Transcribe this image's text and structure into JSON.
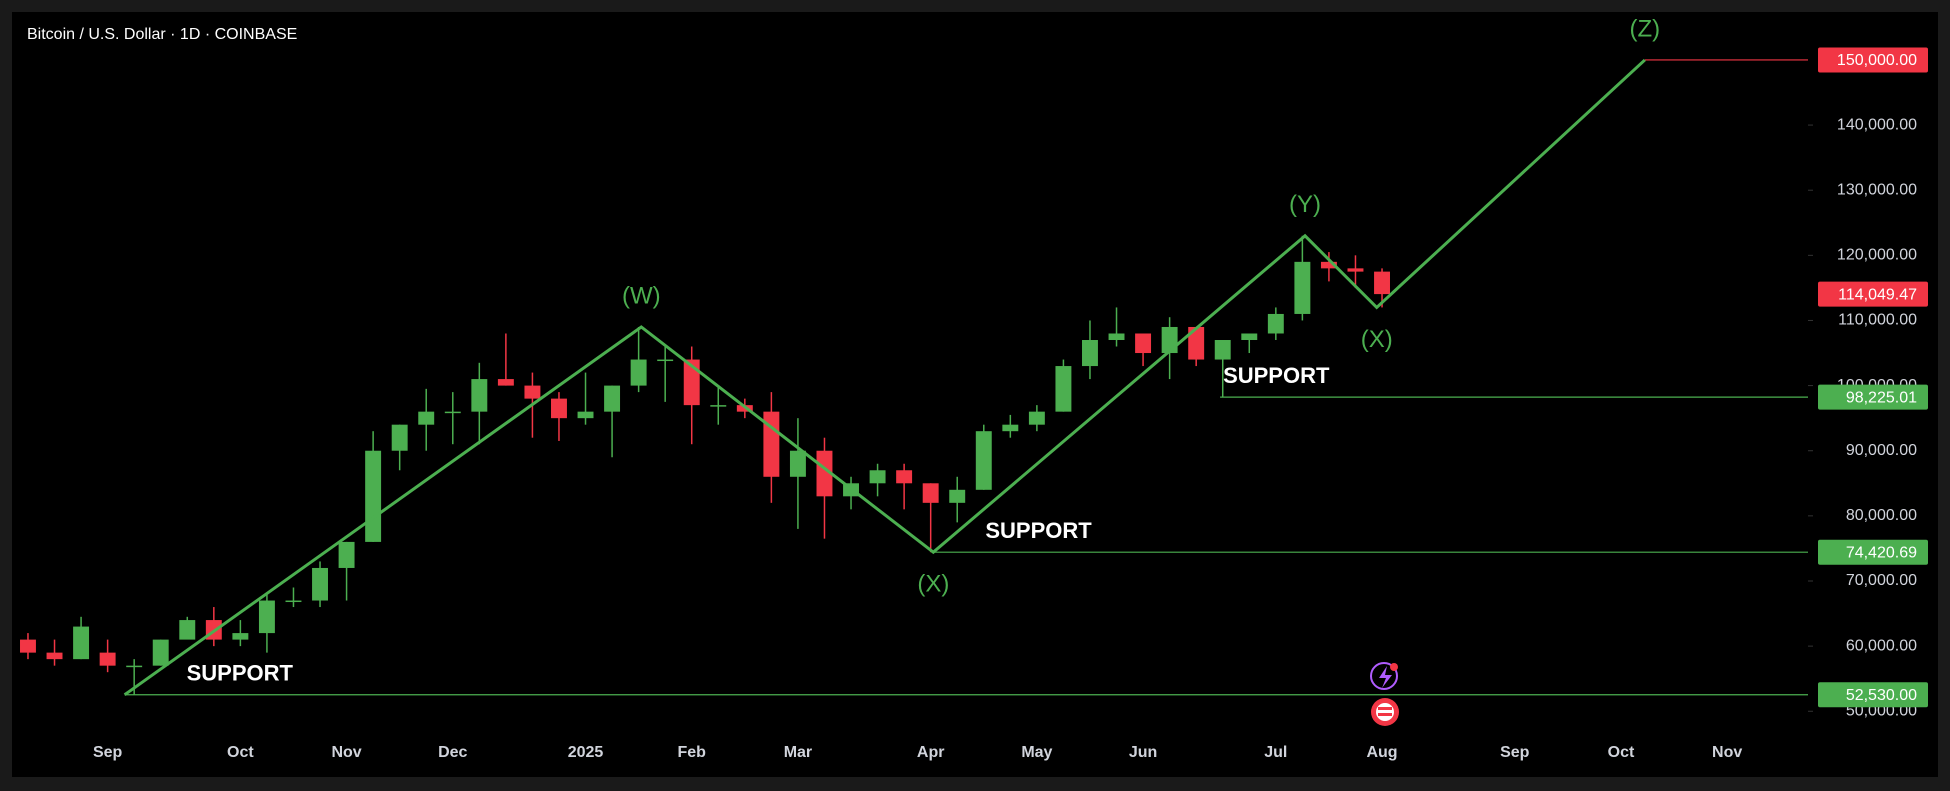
{
  "chart_data": {
    "type": "candlestick",
    "title": "Bitcoin / U.S. Dollar · 1D · COINBASE",
    "categories": [
      null,
      null,
      null,
      "Sep",
      null,
      null,
      null,
      null,
      "Oct",
      null,
      null,
      null,
      "Nov",
      null,
      null,
      null,
      "Dec",
      null,
      null,
      null,
      null,
      "2025",
      null,
      null,
      null,
      "Feb",
      null,
      null,
      null,
      "Mar",
      null,
      null,
      null,
      null,
      "Apr",
      null,
      null,
      null,
      "May",
      null,
      null,
      null,
      "Jun",
      null,
      null,
      null,
      null,
      "Jul",
      null,
      null,
      null,
      "Aug",
      null,
      null,
      null,
      null,
      "Sep",
      null,
      null,
      null,
      "Oct",
      null,
      null,
      null,
      "Nov",
      null,
      null
    ],
    "open": [
      61000,
      59000,
      58000,
      59000,
      57000,
      57000,
      61000,
      64000,
      61000,
      62000,
      67000,
      67000,
      72000,
      76000,
      90000,
      94000,
      96000,
      96000,
      101000,
      100000,
      98000,
      95000,
      96000,
      100000,
      104000,
      104000,
      97000,
      97000,
      96000,
      86000,
      90000,
      83000,
      85000,
      87000,
      85000,
      82000,
      84000,
      93000,
      94000,
      96000,
      103000,
      107000,
      108000,
      105000,
      109000,
      104000,
      107000,
      108000,
      111000,
      119000,
      118000,
      117500,
      null,
      null,
      null,
      null,
      null,
      null,
      null,
      null,
      null,
      null,
      null,
      null,
      null,
      null,
      null
    ],
    "high": [
      62000,
      61000,
      64500,
      61000,
      58000,
      61000,
      64500,
      66000,
      64000,
      68000,
      69000,
      73000,
      76000,
      93000,
      94000,
      99500,
      99000,
      103500,
      108000,
      102000,
      99000,
      102000,
      100000,
      109000,
      106000,
      106000,
      100000,
      98000,
      99000,
      95000,
      92000,
      86000,
      88000,
      88000,
      85000,
      86000,
      94000,
      95500,
      97000,
      104000,
      110000,
      112000,
      108000,
      110500,
      109000,
      106000,
      108000,
      112000,
      123000,
      120500,
      120000,
      118000,
      null,
      null,
      null,
      null,
      null,
      null,
      null,
      null,
      null,
      null,
      null,
      null,
      null,
      null,
      null
    ],
    "low": [
      58000,
      57000,
      58000,
      56000,
      52530,
      57000,
      62000,
      60000,
      60000,
      59000,
      66000,
      66000,
      67000,
      76000,
      87000,
      90000,
      91000,
      91000,
      100000,
      92000,
      91500,
      94000,
      89000,
      99000,
      97500,
      91000,
      94000,
      95000,
      82000,
      78000,
      76500,
      81000,
      83000,
      81000,
      74420.69,
      79000,
      84000,
      92000,
      93000,
      96000,
      101000,
      106000,
      103000,
      101000,
      103000,
      98225.01,
      105000,
      107000,
      110000,
      116000,
      115000,
      112000,
      null,
      null,
      null,
      null,
      null,
      null,
      null,
      null,
      null,
      null,
      null,
      null,
      null,
      null,
      null
    ],
    "close": [
      59000,
      58000,
      63000,
      57000,
      57000,
      61000,
      64000,
      61000,
      62000,
      67000,
      67000,
      72000,
      76000,
      90000,
      94000,
      96000,
      96000,
      101000,
      100000,
      98000,
      95000,
      96000,
      100000,
      104000,
      104000,
      97000,
      97000,
      96000,
      86000,
      90000,
      83000,
      85000,
      87000,
      85000,
      82000,
      84000,
      93000,
      94000,
      96000,
      103000,
      107000,
      108000,
      105000,
      109000,
      104000,
      107000,
      108000,
      111000,
      119000,
      118000,
      117500,
      114049.47,
      null,
      null,
      null,
      null,
      null,
      null,
      null,
      null,
      null,
      null,
      null,
      null,
      null,
      null,
      null
    ],
    "up_color": "#4caf50",
    "down_color": "#f23645",
    "ylim": [
      46200,
      157300
    ],
    "yticks": [
      {
        "value": 50000,
        "label": "50,000.00"
      },
      {
        "value": 60000,
        "label": "60,000.00"
      },
      {
        "value": 70000,
        "label": "70,000.00"
      },
      {
        "value": 80000,
        "label": "80,000.00"
      },
      {
        "value": 90000,
        "label": "90,000.00"
      },
      {
        "value": 100000,
        "label": "100,000.00"
      },
      {
        "value": 110000,
        "label": "110,000.00"
      },
      {
        "value": 120000,
        "label": "120,000.00"
      },
      {
        "value": 130000,
        "label": "130,000.00"
      },
      {
        "value": 140000,
        "label": "140,000.00"
      }
    ],
    "wave": {
      "color": "#4caf50",
      "x": [
        4.14,
        23.6,
        34.6,
        48.6,
        51.3,
        61.4
      ],
      "y": [
        52530,
        109000,
        74420.69,
        123000,
        112000,
        150000
      ],
      "labels": [
        null,
        "(W)",
        "(X)",
        "(Y)",
        "(X)",
        "(Z)"
      ]
    },
    "levels": [
      {
        "value": 150000,
        "label": "150,000.00",
        "color": "#f23645",
        "start": 61.4
      },
      {
        "value": 98225.01,
        "label": "98,225.01",
        "color": "#4caf50",
        "start": 45.4,
        "note": "SUPPORT"
      },
      {
        "value": 74420.69,
        "label": "74,420.69",
        "color": "#4caf50",
        "start": 34.6,
        "note": "SUPPORT"
      },
      {
        "value": 52530,
        "label": "52,530.00",
        "color": "#4caf50",
        "start": 4.14,
        "note": "SUPPORT"
      }
    ],
    "last_price": {
      "value": 114049.47,
      "label": "114,049.47",
      "color": "#f23645"
    }
  }
}
